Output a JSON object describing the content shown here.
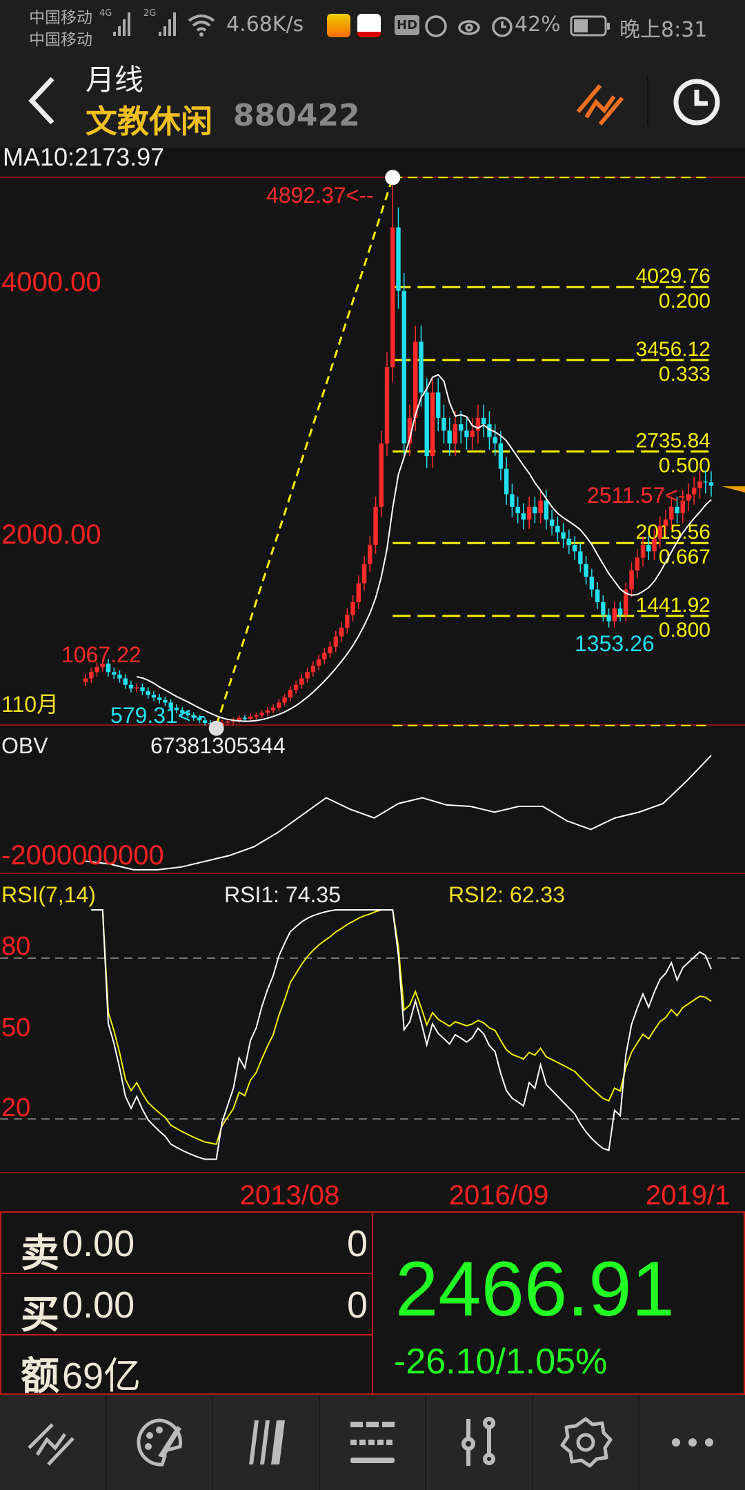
{
  "status_bar": {
    "carrier1": "中国移动",
    "carrier2": "中国移动",
    "net1": "4G",
    "net2": "2G",
    "speed": "4.68K/s",
    "hd": "HD",
    "battery": "42%",
    "time": "晚上8:31"
  },
  "header": {
    "period": "月线",
    "name": "文教休闲",
    "code": "880422",
    "name_color": "#f0c020"
  },
  "indicator_line": "MA10:2173.97",
  "chart_data": {
    "type": "candlestick",
    "price": {
      "y_labels": [
        "4000.00",
        "2000.00"
      ],
      "y_label_values": [
        4000,
        2000
      ],
      "closes": [
        950,
        1000,
        1040,
        1067,
        1000,
        980,
        950,
        900,
        870,
        880,
        850,
        820,
        800,
        780,
        760,
        720,
        700,
        680,
        660,
        640,
        620,
        600,
        590,
        579.31,
        600,
        610,
        620,
        640,
        630,
        650,
        660,
        680,
        700,
        720,
        760,
        800,
        860,
        900,
        950,
        1000,
        1050,
        1100,
        1150,
        1200,
        1280,
        1350,
        1450,
        1550,
        1700,
        1850,
        2000,
        2300,
        2800,
        3400,
        4500,
        4000,
        2800,
        3000,
        3600,
        3200,
        2700,
        3200,
        3000,
        2900,
        2800,
        2950,
        2900,
        2850,
        2900,
        3000,
        2950,
        2850,
        2800,
        2600,
        2400,
        2300,
        2250,
        2200,
        2300,
        2250,
        2350,
        2200,
        2150,
        2100,
        2050,
        2000,
        1950,
        1850,
        1750,
        1650,
        1550,
        1450,
        1400,
        1500,
        1450,
        1650,
        1800,
        1900,
        2000,
        1950,
        2050,
        2150,
        2200,
        2300,
        2250,
        2350,
        2400,
        2450,
        2500,
        2493,
        2466.91
      ],
      "high_point": "4892.37<--",
      "high_value": 4892.37,
      "low_point": "579.31<--",
      "low_value": 579.31,
      "local_high": "1067.22",
      "local_low": "1353.26",
      "latest_high": "2511.57<--",
      "left_bottom_label": "110月",
      "fibonacci": [
        {
          "price": "4029.76",
          "ratio": "0.200",
          "value": 4029.76
        },
        {
          "price": "3456.12",
          "ratio": "0.333",
          "value": 3456.12
        },
        {
          "price": "2735.84",
          "ratio": "0.500",
          "value": 2735.84
        },
        {
          "price": "2015.56",
          "ratio": "0.667",
          "value": 2015.56
        },
        {
          "price": "1441.92",
          "ratio": "0.800",
          "value": 1441.92
        }
      ],
      "up_color": "#ff2a2a",
      "down_color": "#22e0f0",
      "ma_color": "#ffffff",
      "fib_color": "#f5f000"
    },
    "obv": {
      "label": "OBV",
      "value": "67381305344",
      "y_label": "-2000000000",
      "series": [
        -6000000000,
        -8000000000,
        -12000000000,
        -12000000000,
        -10000000000,
        -6000000000,
        -2000000000,
        4000000000,
        14000000000,
        26000000000,
        38000000000,
        30000000000,
        24000000000,
        34000000000,
        38000000000,
        33000000000,
        32000000000,
        28000000000,
        32000000000,
        32000000000,
        22000000000,
        16000000000,
        24000000000,
        28000000000,
        34000000000,
        50000000000,
        67381305344
      ]
    },
    "rsi": {
      "label": "RSI(7,14)",
      "rsi1": "RSI1: 74.35",
      "rsi2": "RSI2: 62.33",
      "rsi1_color": "#ffffff",
      "rsi2_color": "#f0f000",
      "levels": [
        "80",
        "50",
        "20"
      ]
    },
    "x_labels": [
      "2013/08",
      "2016/09",
      "2019/1"
    ]
  },
  "quote": {
    "sell_label": "卖",
    "sell_price": "0.00",
    "sell_vol": "0",
    "buy_label": "买",
    "buy_price": "0.00",
    "buy_vol": "0",
    "amount_label": "额",
    "amount": "69亿",
    "price": "2466.91",
    "change": "-26.10/1.05%",
    "price_color": "#22ff22"
  },
  "toolbar": {
    "icons": [
      "draw-line-icon",
      "palette-icon",
      "parallel-lines-icon",
      "dashed-lines-icon",
      "sliders-icon",
      "gear-icon",
      "more-icon"
    ]
  }
}
